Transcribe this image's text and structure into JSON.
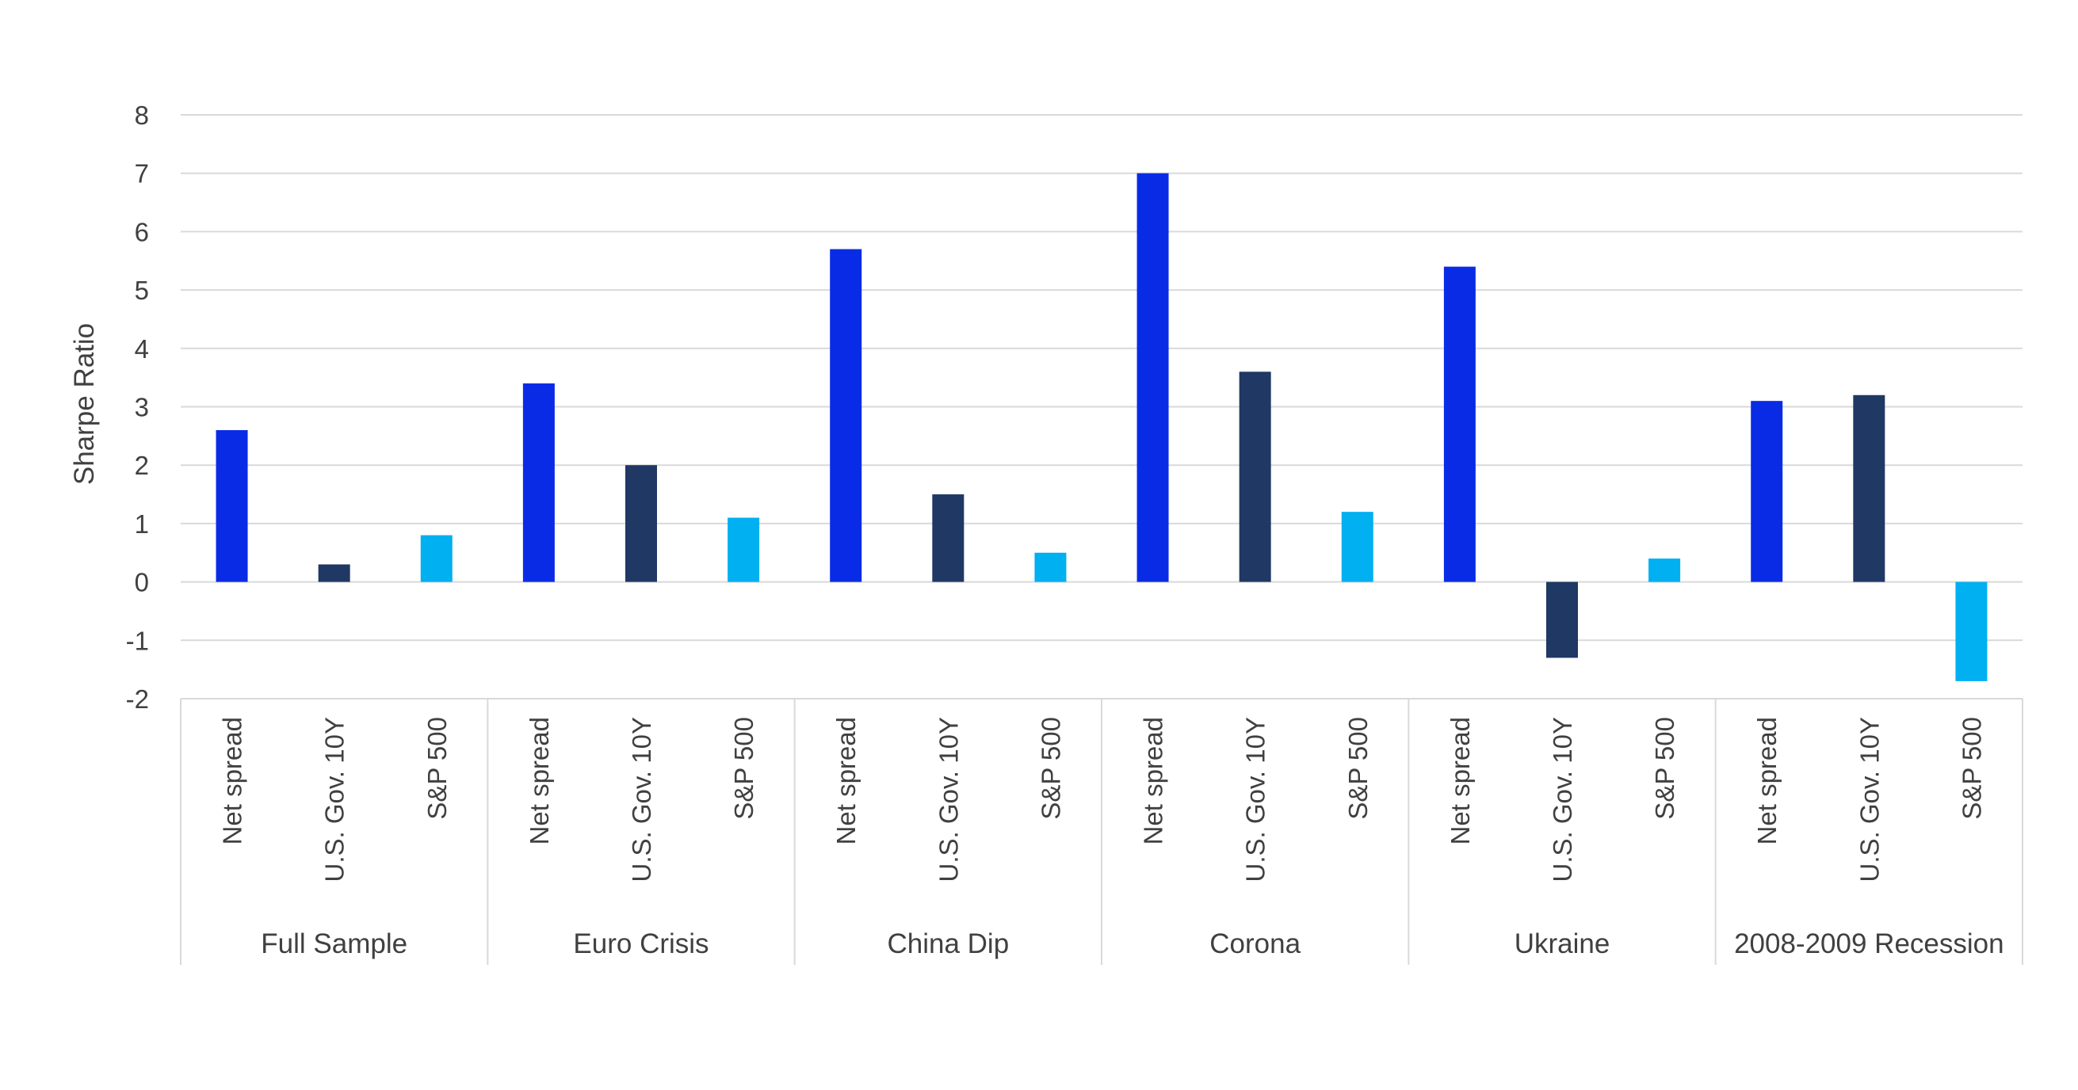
{
  "chart_data": {
    "type": "bar",
    "title": "",
    "xlabel": "",
    "ylabel": "Sharpe Ratio",
    "ylim": [
      -2,
      8
    ],
    "yticks": [
      8,
      7,
      6,
      5,
      4,
      3,
      2,
      1,
      0,
      -1,
      -2
    ],
    "grid": true,
    "legend": "none",
    "groups": [
      {
        "name": "Full Sample",
        "bars": [
          {
            "label": "Net spread",
            "value": 2.6
          },
          {
            "label": "U.S. Gov. 10Y",
            "value": 0.3
          },
          {
            "label": "S&P 500",
            "value": 0.8
          }
        ]
      },
      {
        "name": "Euro Crisis",
        "bars": [
          {
            "label": "Net spread",
            "value": 3.4
          },
          {
            "label": "U.S. Gov. 10Y",
            "value": 2.0
          },
          {
            "label": "S&P 500",
            "value": 1.1
          }
        ]
      },
      {
        "name": "China Dip",
        "bars": [
          {
            "label": "Net spread",
            "value": 5.7
          },
          {
            "label": "U.S. Gov. 10Y",
            "value": 1.5
          },
          {
            "label": "S&P 500",
            "value": 0.5
          }
        ]
      },
      {
        "name": "Corona",
        "bars": [
          {
            "label": "Net spread",
            "value": 7.0
          },
          {
            "label": "U.S. Gov. 10Y",
            "value": 3.6
          },
          {
            "label": "S&P 500",
            "value": 1.2
          }
        ]
      },
      {
        "name": "Ukraine",
        "bars": [
          {
            "label": "Net spread",
            "value": 5.4
          },
          {
            "label": "U.S. Gov. 10Y",
            "value": -1.3
          },
          {
            "label": "S&P 500",
            "value": 0.4
          }
        ]
      },
      {
        "name": "2008-2009 Recession",
        "bars": [
          {
            "label": "Net spread",
            "value": 3.1
          },
          {
            "label": "U.S. Gov. 10Y",
            "value": 3.2
          },
          {
            "label": "S&P 500",
            "value": -1.7
          }
        ]
      }
    ],
    "colors": {
      "Net spread": "#0A2BE6",
      "U.S. Gov. 10Y": "#1F3864",
      "S&P 500": "#00B0F0"
    }
  }
}
